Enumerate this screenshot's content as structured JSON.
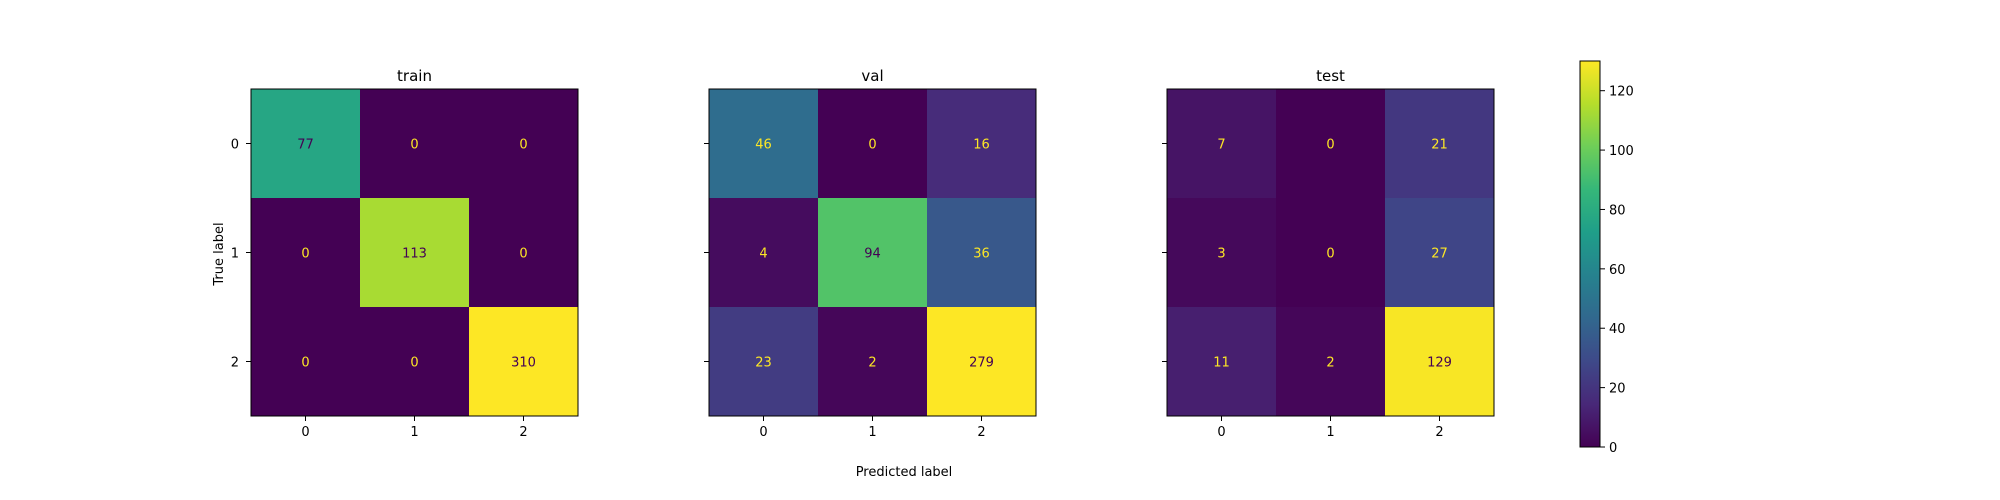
{
  "chart_data": {
    "type": "heatmap",
    "colormap": "viridis",
    "color_range": [
      0,
      130
    ],
    "text_color_light": "#fde725",
    "text_color_dark": "#440154",
    "panels": [
      {
        "title": "train",
        "x_ticks": [
          "0",
          "1",
          "2"
        ],
        "y_ticks": [
          "0",
          "1",
          "2"
        ],
        "matrix": [
          [
            77,
            0,
            0
          ],
          [
            0,
            113,
            0
          ],
          [
            0,
            0,
            310
          ]
        ]
      },
      {
        "title": "val",
        "x_ticks": [
          "0",
          "1",
          "2"
        ],
        "y_ticks": [
          "0",
          "1",
          "2"
        ],
        "matrix": [
          [
            46,
            0,
            16
          ],
          [
            4,
            94,
            36
          ],
          [
            23,
            2,
            279
          ]
        ]
      },
      {
        "title": "test",
        "x_ticks": [
          "0",
          "1",
          "2"
        ],
        "y_ticks": [
          "0",
          "1",
          "2"
        ],
        "matrix": [
          [
            7,
            0,
            21
          ],
          [
            3,
            0,
            27
          ],
          [
            11,
            2,
            129
          ]
        ]
      }
    ],
    "xlabel": "Predicted label",
    "ylabel": "True label",
    "colorbar": {
      "ticks": [
        0,
        20,
        40,
        60,
        80,
        100,
        120
      ]
    }
  }
}
